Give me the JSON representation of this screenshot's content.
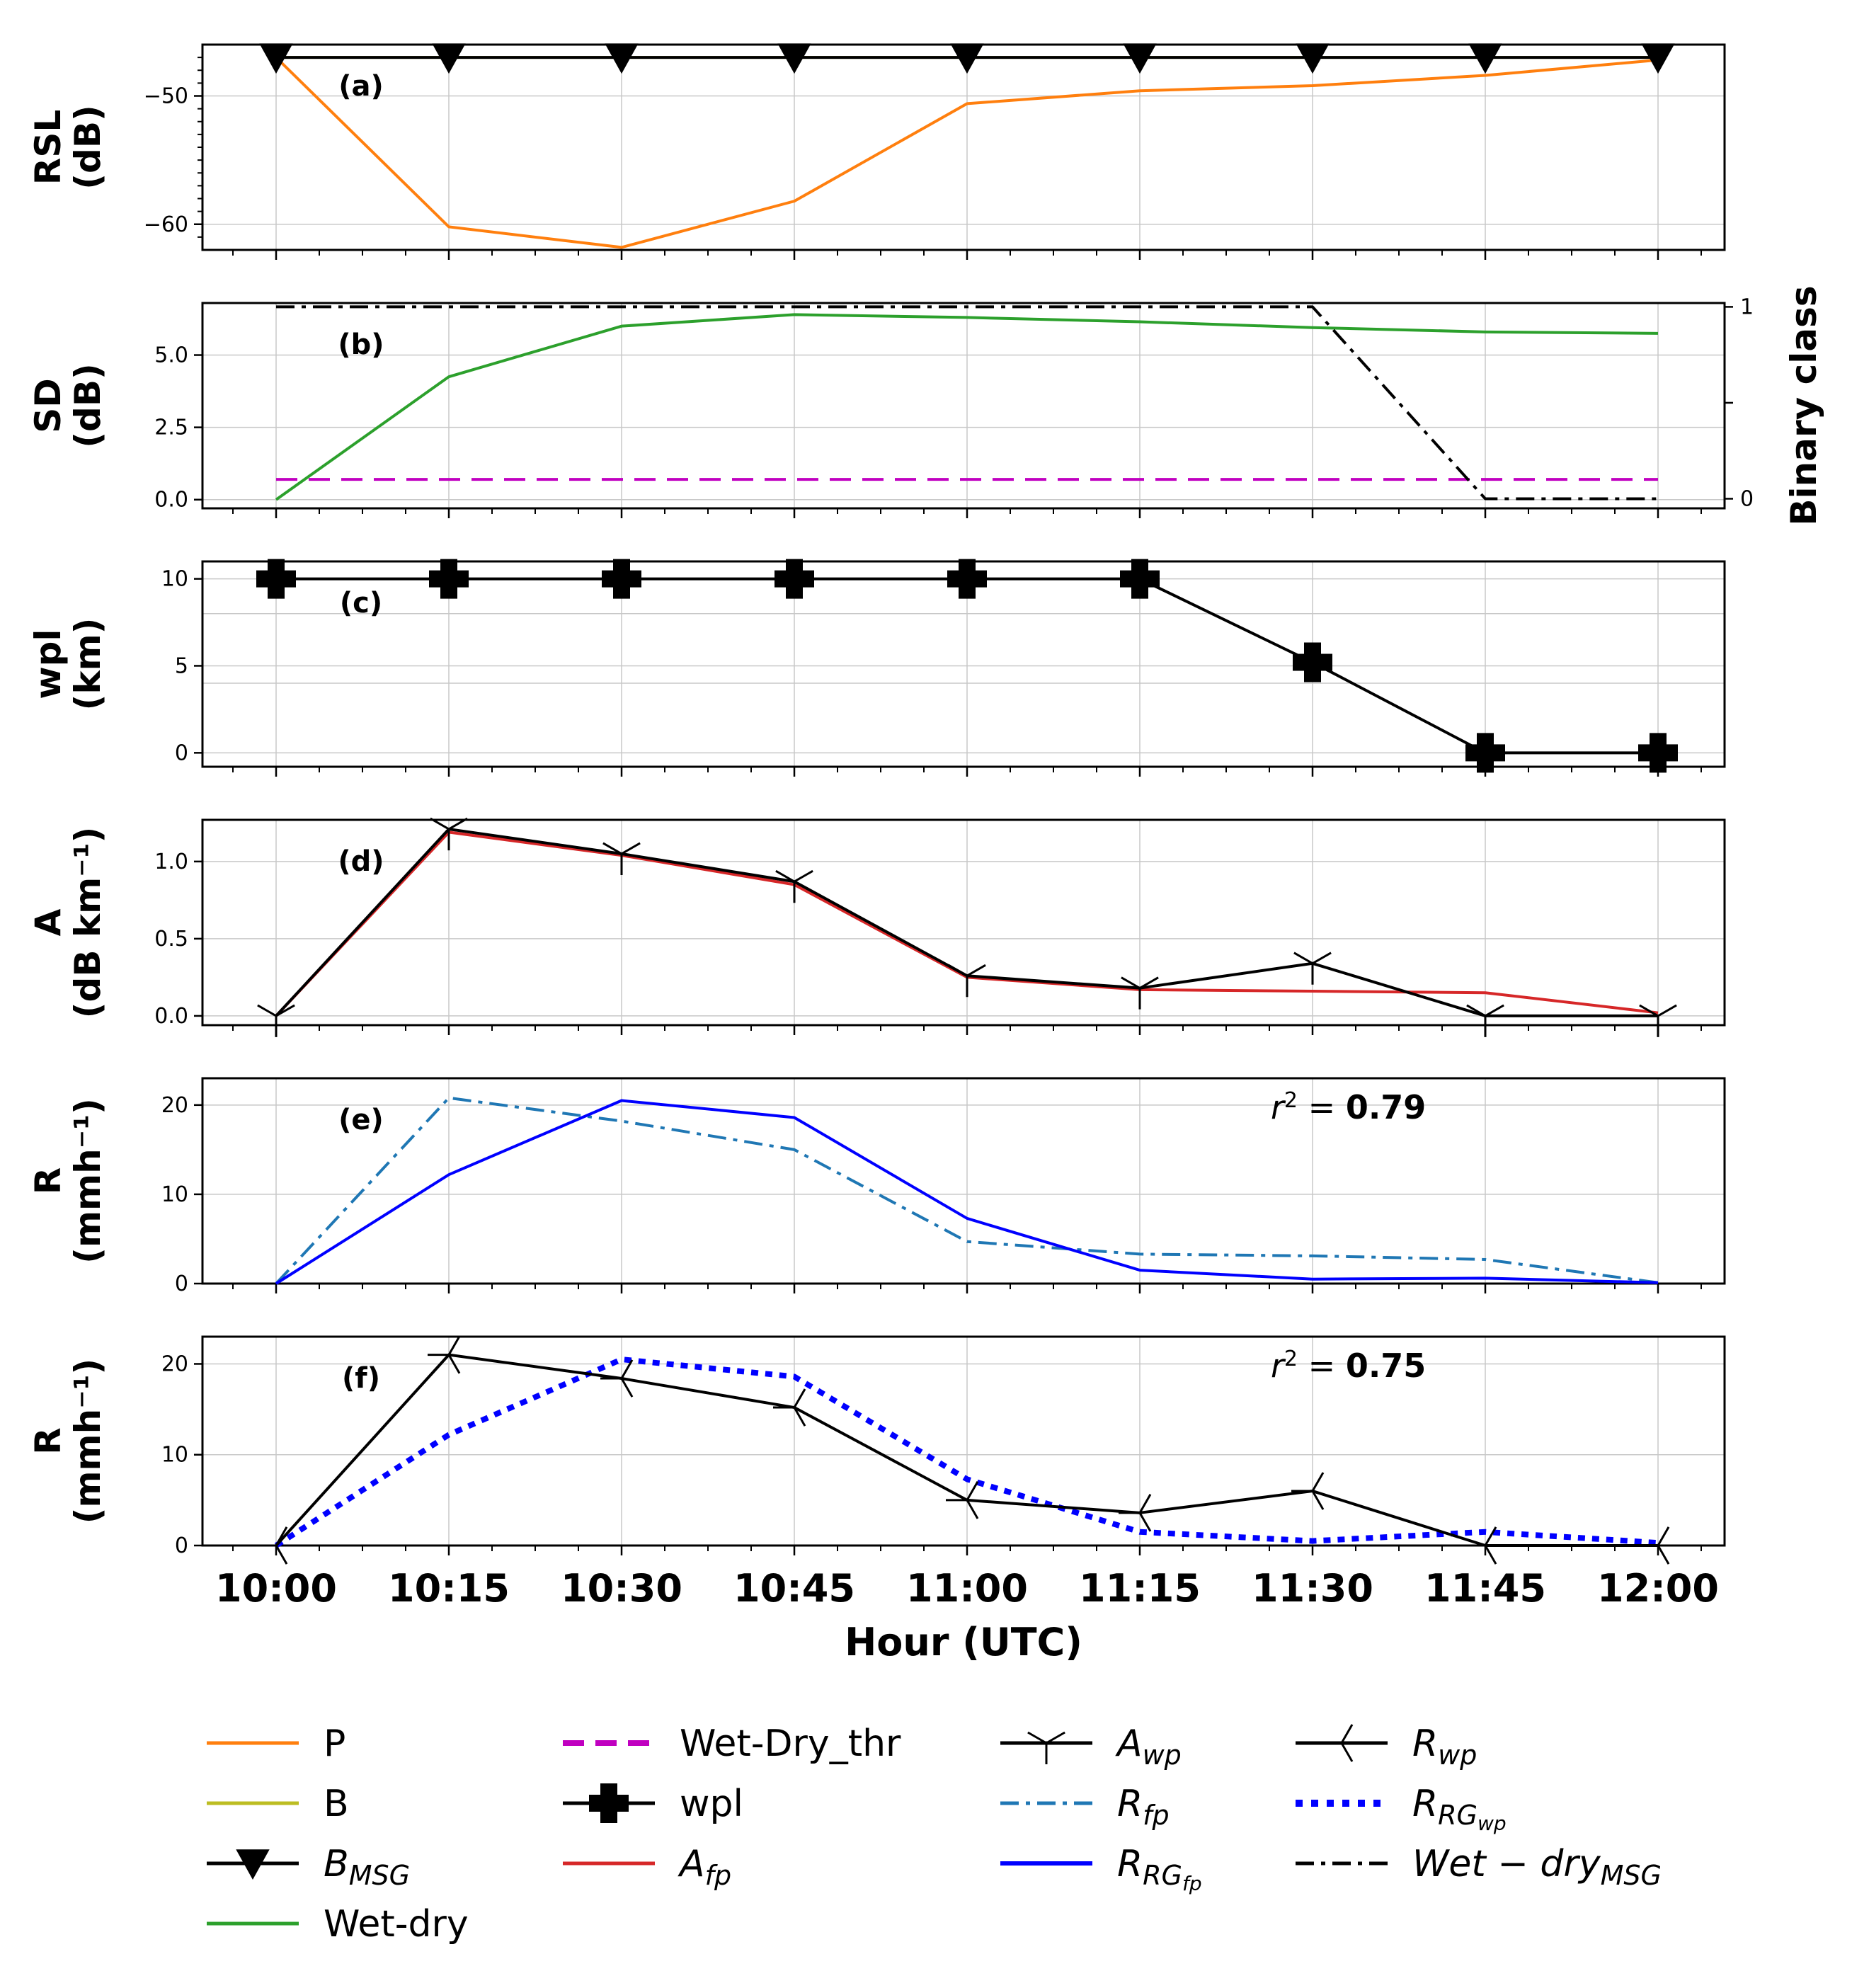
{
  "figure": {
    "xlabel": "Hour (UTC)",
    "xticks": [
      "10:00",
      "10:15",
      "10:30",
      "10:45",
      "11:00",
      "11:15",
      "11:30",
      "11:45",
      "12:00"
    ]
  },
  "chart_data": [
    {
      "id": "a",
      "label": "(a)",
      "type": "line",
      "ylabel": [
        "RSL",
        "(dB)"
      ],
      "ylim": [
        -62,
        -46
      ],
      "yticks": [
        -50,
        -60
      ],
      "ytick_labels": [
        "−50",
        "−60"
      ],
      "minor_yticks": [
        -61,
        -59,
        -58,
        -57,
        -56,
        -55,
        -54,
        -53,
        -52,
        -51,
        -49,
        -48,
        -47
      ],
      "series": [
        {
          "name": "P",
          "color": "#ff7f0e",
          "values": [
            -47.0,
            -60.2,
            -61.8,
            -58.2,
            -50.6,
            -49.6,
            -49.2,
            -48.4,
            -47.2
          ]
        },
        {
          "name": "B",
          "color": "#bcbd22",
          "values": [
            -47.0,
            -47.0,
            -47.0,
            -47.0,
            -47.0,
            -47.0,
            -47.0,
            -47.0,
            -47.0
          ]
        },
        {
          "name": "B_MSG",
          "color": "#000000",
          "marker": "triangle-down",
          "values": [
            -47.0,
            -47.0,
            -47.0,
            -47.0,
            -47.0,
            -47.0,
            -47.0,
            -47.0,
            -47.0
          ]
        }
      ]
    },
    {
      "id": "b",
      "label": "(b)",
      "type": "line",
      "ylabel": [
        "SD",
        "(dB)"
      ],
      "ylim": [
        -0.3,
        6.8
      ],
      "yticks": [
        0.0,
        2.5,
        5.0
      ],
      "ytick_labels": [
        "0.0",
        "2.5",
        "5.0"
      ],
      "right_axis": {
        "label": "Binary class",
        "ylim": [
          -0.05,
          1.02
        ],
        "ticks": [
          0,
          0.5,
          1
        ],
        "tick_labels": [
          "0",
          "",
          "1"
        ]
      },
      "series": [
        {
          "name": "Wet-dry",
          "color": "#2ca02c",
          "values": [
            0.0,
            4.25,
            6.0,
            6.4,
            6.3,
            6.15,
            5.95,
            5.8,
            5.75
          ]
        },
        {
          "name": "Wet-Dry_thr",
          "color": "#c000c0",
          "dash": "dashed",
          "values": [
            0.7,
            0.7,
            0.7,
            0.7,
            0.7,
            0.7,
            0.7,
            0.7,
            0.7
          ]
        },
        {
          "name": "Wet-dry_MSG",
          "color": "#000000",
          "dash": "dashdot",
          "axis": "right",
          "values": [
            1,
            1,
            1,
            1,
            1,
            1,
            1,
            0,
            0
          ]
        }
      ]
    },
    {
      "id": "c",
      "label": "(c)",
      "type": "line",
      "ylabel": [
        "wpl",
        "(km)"
      ],
      "ylim": [
        -0.8,
        11.0
      ],
      "yticks": [
        0,
        5,
        10
      ],
      "ytick_labels": [
        "0",
        "5",
        "10"
      ],
      "extra_gridlines": [
        4,
        8
      ],
      "series": [
        {
          "name": "wpl",
          "color": "#000000",
          "marker": "plus",
          "values": [
            10,
            10,
            10,
            10,
            10,
            10,
            5.2,
            0,
            0
          ]
        }
      ]
    },
    {
      "id": "d",
      "label": "(d)",
      "type": "line",
      "ylabel": [
        "A",
        "(dB km⁻¹)"
      ],
      "ylim": [
        -0.06,
        1.27
      ],
      "yticks": [
        0.0,
        0.5,
        1.0
      ],
      "ytick_labels": [
        "0.0",
        "0.5",
        "1.0"
      ],
      "series": [
        {
          "name": "A_fp",
          "color": "#d62728",
          "values": [
            0.0,
            1.19,
            1.04,
            0.85,
            0.25,
            0.17,
            0.16,
            0.15,
            0.02
          ]
        },
        {
          "name": "A_wp",
          "color": "#000000",
          "marker": "tri-down",
          "values": [
            0.0,
            1.21,
            1.05,
            0.87,
            0.26,
            0.18,
            0.34,
            0.0,
            0.0
          ]
        }
      ]
    },
    {
      "id": "e",
      "label": "(e)",
      "type": "line",
      "ylabel": [
        "R",
        "(mmh⁻¹)"
      ],
      "ylim": [
        0,
        23
      ],
      "yticks": [
        0,
        10,
        20
      ],
      "ytick_labels": [
        "0",
        "10",
        "20"
      ],
      "r2_prefix": "r",
      "r2_sup": "2",
      "r2_eq": " = ",
      "r2_value": "0.79",
      "series": [
        {
          "name": "R_fp",
          "color": "#1f77b4",
          "dash": "dashdot",
          "values": [
            0.0,
            20.8,
            18.2,
            15.0,
            4.7,
            3.3,
            3.1,
            2.7,
            0.1
          ]
        },
        {
          "name": "R_RGfp",
          "color": "#0000ff",
          "values": [
            0.0,
            12.2,
            20.5,
            18.6,
            7.3,
            1.5,
            0.5,
            0.6,
            0.1
          ]
        }
      ]
    },
    {
      "id": "f",
      "label": "(f)",
      "type": "line",
      "ylabel": [
        "R",
        "(mmh⁻¹)"
      ],
      "ylim": [
        0,
        23
      ],
      "yticks": [
        0,
        10,
        20
      ],
      "ytick_labels": [
        "0",
        "10",
        "20"
      ],
      "r2_prefix": "r",
      "r2_sup": "2",
      "r2_eq": " = ",
      "r2_value": "0.75",
      "series": [
        {
          "name": "R_RGwp",
          "color": "#0000ff",
          "dash": "dotted",
          "values": [
            0.0,
            12.2,
            20.5,
            18.6,
            7.3,
            1.5,
            0.5,
            1.5,
            0.3
          ]
        },
        {
          "name": "R_wp",
          "color": "#000000",
          "marker": "tri-right",
          "values": [
            0.0,
            21.0,
            18.4,
            15.2,
            5.0,
            3.6,
            6.0,
            0.0,
            0.0
          ]
        }
      ]
    }
  ],
  "legend": {
    "items": [
      {
        "id": "P",
        "text": "P",
        "style": "line",
        "color": "#ff7f0e"
      },
      {
        "id": "B",
        "text": "B",
        "style": "line",
        "color": "#bcbd22"
      },
      {
        "id": "B_MSG",
        "text": "B",
        "sub": "MSG",
        "italic": true,
        "style": "marker-triangle",
        "color": "#000000"
      },
      {
        "id": "Wet-dry",
        "text": "Wet-dry",
        "style": "line",
        "color": "#2ca02c"
      },
      {
        "id": "Wet-Dry_thr",
        "text": "Wet-Dry_thr",
        "style": "dashed",
        "color": "#c000c0"
      },
      {
        "id": "wpl",
        "text": "wpl",
        "style": "marker-plus",
        "color": "#000000"
      },
      {
        "id": "A_fp",
        "text": "A",
        "sub": "fp",
        "italic": true,
        "style": "line",
        "color": "#d62728"
      },
      {
        "id": "A_wp",
        "text": "A",
        "sub": "wp",
        "italic": true,
        "style": "marker-tri-down",
        "color": "#000000"
      },
      {
        "id": "R_fp",
        "text": "R",
        "sub": "fp",
        "italic": true,
        "style": "dashdot",
        "color": "#1f77b4"
      },
      {
        "id": "R_RGfp",
        "text": "R",
        "sub": "RG",
        "sub2": "fp",
        "italic": true,
        "style": "line-thick",
        "color": "#0000ff"
      },
      {
        "id": "R_wp",
        "text": "R",
        "sub": "wp",
        "italic": true,
        "style": "marker-tri-right",
        "color": "#000000"
      },
      {
        "id": "R_RGwp",
        "text": "R",
        "sub": "RG",
        "sub2": "wp",
        "italic": true,
        "style": "dotted",
        "color": "#0000ff"
      },
      {
        "id": "Wetdry_MSG",
        "text": "Wet − dry",
        "sub": "MSG",
        "italic": true,
        "style": "dashdot",
        "color": "#000000"
      }
    ]
  }
}
